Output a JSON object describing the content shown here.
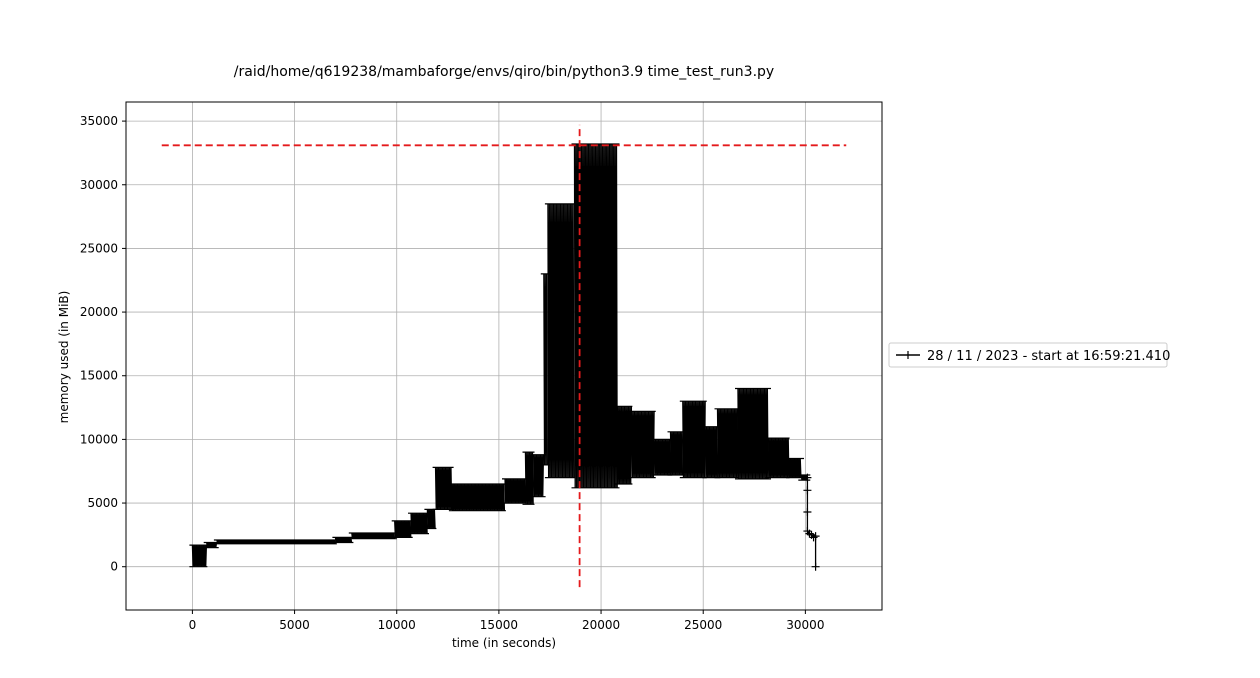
{
  "chart_data": {
    "type": "line",
    "title": "/raid/home/q619238/mambaforge/envs/qiro/bin/python3.9 time_test_run3.py",
    "xlabel": "time (in seconds)",
    "ylabel": "memory used (in MiB)",
    "xlim": [
      -3250,
      33750
    ],
    "ylim": [
      -3400,
      36500
    ],
    "xticks": [
      0,
      5000,
      10000,
      15000,
      20000,
      25000,
      30000
    ],
    "xtick_labels": [
      "0",
      "5000",
      "10000",
      "15000",
      "20000",
      "25000",
      "30000"
    ],
    "yticks": [
      0,
      5000,
      10000,
      15000,
      20000,
      25000,
      30000,
      35000
    ],
    "ytick_labels": [
      "0",
      "5000",
      "10000",
      "15000",
      "20000",
      "25000",
      "30000",
      "35000"
    ],
    "grid": true,
    "legend_placement": "outside-right",
    "series": [
      {
        "name": "28 / 11 / 2023 - start at 16:59:21.410",
        "color": "#000000",
        "marker": "+",
        "segments": [
          {
            "x0": 0,
            "x1": 700,
            "lo": 0,
            "hi": 1700
          },
          {
            "x0": 700,
            "x1": 1200,
            "lo": 1500,
            "hi": 1900
          },
          {
            "x0": 1200,
            "x1": 7000,
            "lo": 1800,
            "hi": 2100
          },
          {
            "x0": 7000,
            "x1": 7800,
            "lo": 1900,
            "hi": 2300
          },
          {
            "x0": 7800,
            "x1": 9900,
            "lo": 2200,
            "hi": 2650
          },
          {
            "x0": 9900,
            "x1": 10700,
            "lo": 2300,
            "hi": 3600
          },
          {
            "x0": 10700,
            "x1": 11500,
            "lo": 2600,
            "hi": 4200
          },
          {
            "x0": 11500,
            "x1": 11900,
            "lo": 3000,
            "hi": 4500
          },
          {
            "x0": 11900,
            "x1": 12700,
            "lo": 4500,
            "hi": 7800
          },
          {
            "x0": 12700,
            "x1": 15300,
            "lo": 4400,
            "hi": 6500
          },
          {
            "x0": 15300,
            "x1": 16300,
            "lo": 5000,
            "hi": 6900
          },
          {
            "x0": 16300,
            "x1": 16700,
            "lo": 4900,
            "hi": 9000
          },
          {
            "x0": 16700,
            "x1": 17200,
            "lo": 5500,
            "hi": 8800
          },
          {
            "x0": 17200,
            "x1": 17400,
            "lo": 8000,
            "hi": 23000
          },
          {
            "x0": 17400,
            "x1": 18700,
            "lo": 7000,
            "hi": 28500
          },
          {
            "x0": 18700,
            "x1": 20800,
            "lo": 6200,
            "hi": 33200
          },
          {
            "x0": 20800,
            "x1": 21500,
            "lo": 6500,
            "hi": 12600
          },
          {
            "x0": 21500,
            "x1": 22600,
            "lo": 7000,
            "hi": 12200
          },
          {
            "x0": 22600,
            "x1": 23400,
            "lo": 7200,
            "hi": 10000
          },
          {
            "x0": 23400,
            "x1": 24000,
            "lo": 7200,
            "hi": 10600
          },
          {
            "x0": 24000,
            "x1": 25100,
            "lo": 7000,
            "hi": 13000
          },
          {
            "x0": 25100,
            "x1": 25700,
            "lo": 7000,
            "hi": 11000
          },
          {
            "x0": 25700,
            "x1": 26700,
            "lo": 7000,
            "hi": 12400
          },
          {
            "x0": 26700,
            "x1": 28200,
            "lo": 6900,
            "hi": 14000
          },
          {
            "x0": 28200,
            "x1": 29200,
            "lo": 7000,
            "hi": 10100
          },
          {
            "x0": 29200,
            "x1": 29800,
            "lo": 7000,
            "hi": 8500
          },
          {
            "x0": 29800,
            "x1": 30100,
            "lo": 6800,
            "hi": 7200
          }
        ],
        "tail": [
          [
            30100,
            7000
          ],
          [
            30100,
            6000
          ],
          [
            30100,
            4300
          ],
          [
            30100,
            2800
          ],
          [
            30200,
            2600
          ],
          [
            30300,
            2500
          ],
          [
            30400,
            2300
          ],
          [
            30500,
            2400
          ],
          [
            30500,
            0
          ]
        ]
      }
    ],
    "reference_lines": [
      {
        "orientation": "horizontal",
        "y": 33100,
        "x_from": -1500,
        "x_to": 32000,
        "color": "#e41a1c",
        "style": "dashed"
      },
      {
        "orientation": "vertical",
        "x": 18950,
        "y_from": -1600,
        "y_to": 34700,
        "color": "#e41a1c",
        "style": "dashed"
      }
    ]
  }
}
